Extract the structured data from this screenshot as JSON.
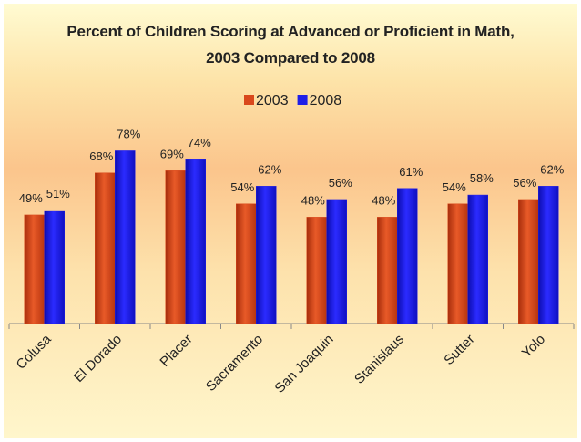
{
  "chart_data": {
    "type": "bar",
    "title": "Percent of Children Scoring at Advanced or Proficient in Math, 2003 Compared to 2008",
    "categories": [
      "Colusa",
      "El Dorado",
      "Placer",
      "Sacramento",
      "San Joaquin",
      "Stanislaus",
      "Sutter",
      "Yolo"
    ],
    "series": [
      {
        "name": "2003",
        "color": "#d9481c",
        "values": [
          49,
          68,
          69,
          54,
          48,
          48,
          54,
          56
        ],
        "value_labels": [
          "49%",
          "68%",
          "69%",
          "54%",
          "48%",
          "48%",
          "54%",
          "56%"
        ]
      },
      {
        "name": "2008",
        "color": "#1f1fe8",
        "values": [
          51,
          78,
          74,
          62,
          56,
          61,
          58,
          62
        ],
        "value_labels": [
          "51%",
          "78%",
          "74%",
          "62%",
          "56%",
          "61%",
          "58%",
          "62%"
        ]
      }
    ],
    "legend": "top"
  }
}
